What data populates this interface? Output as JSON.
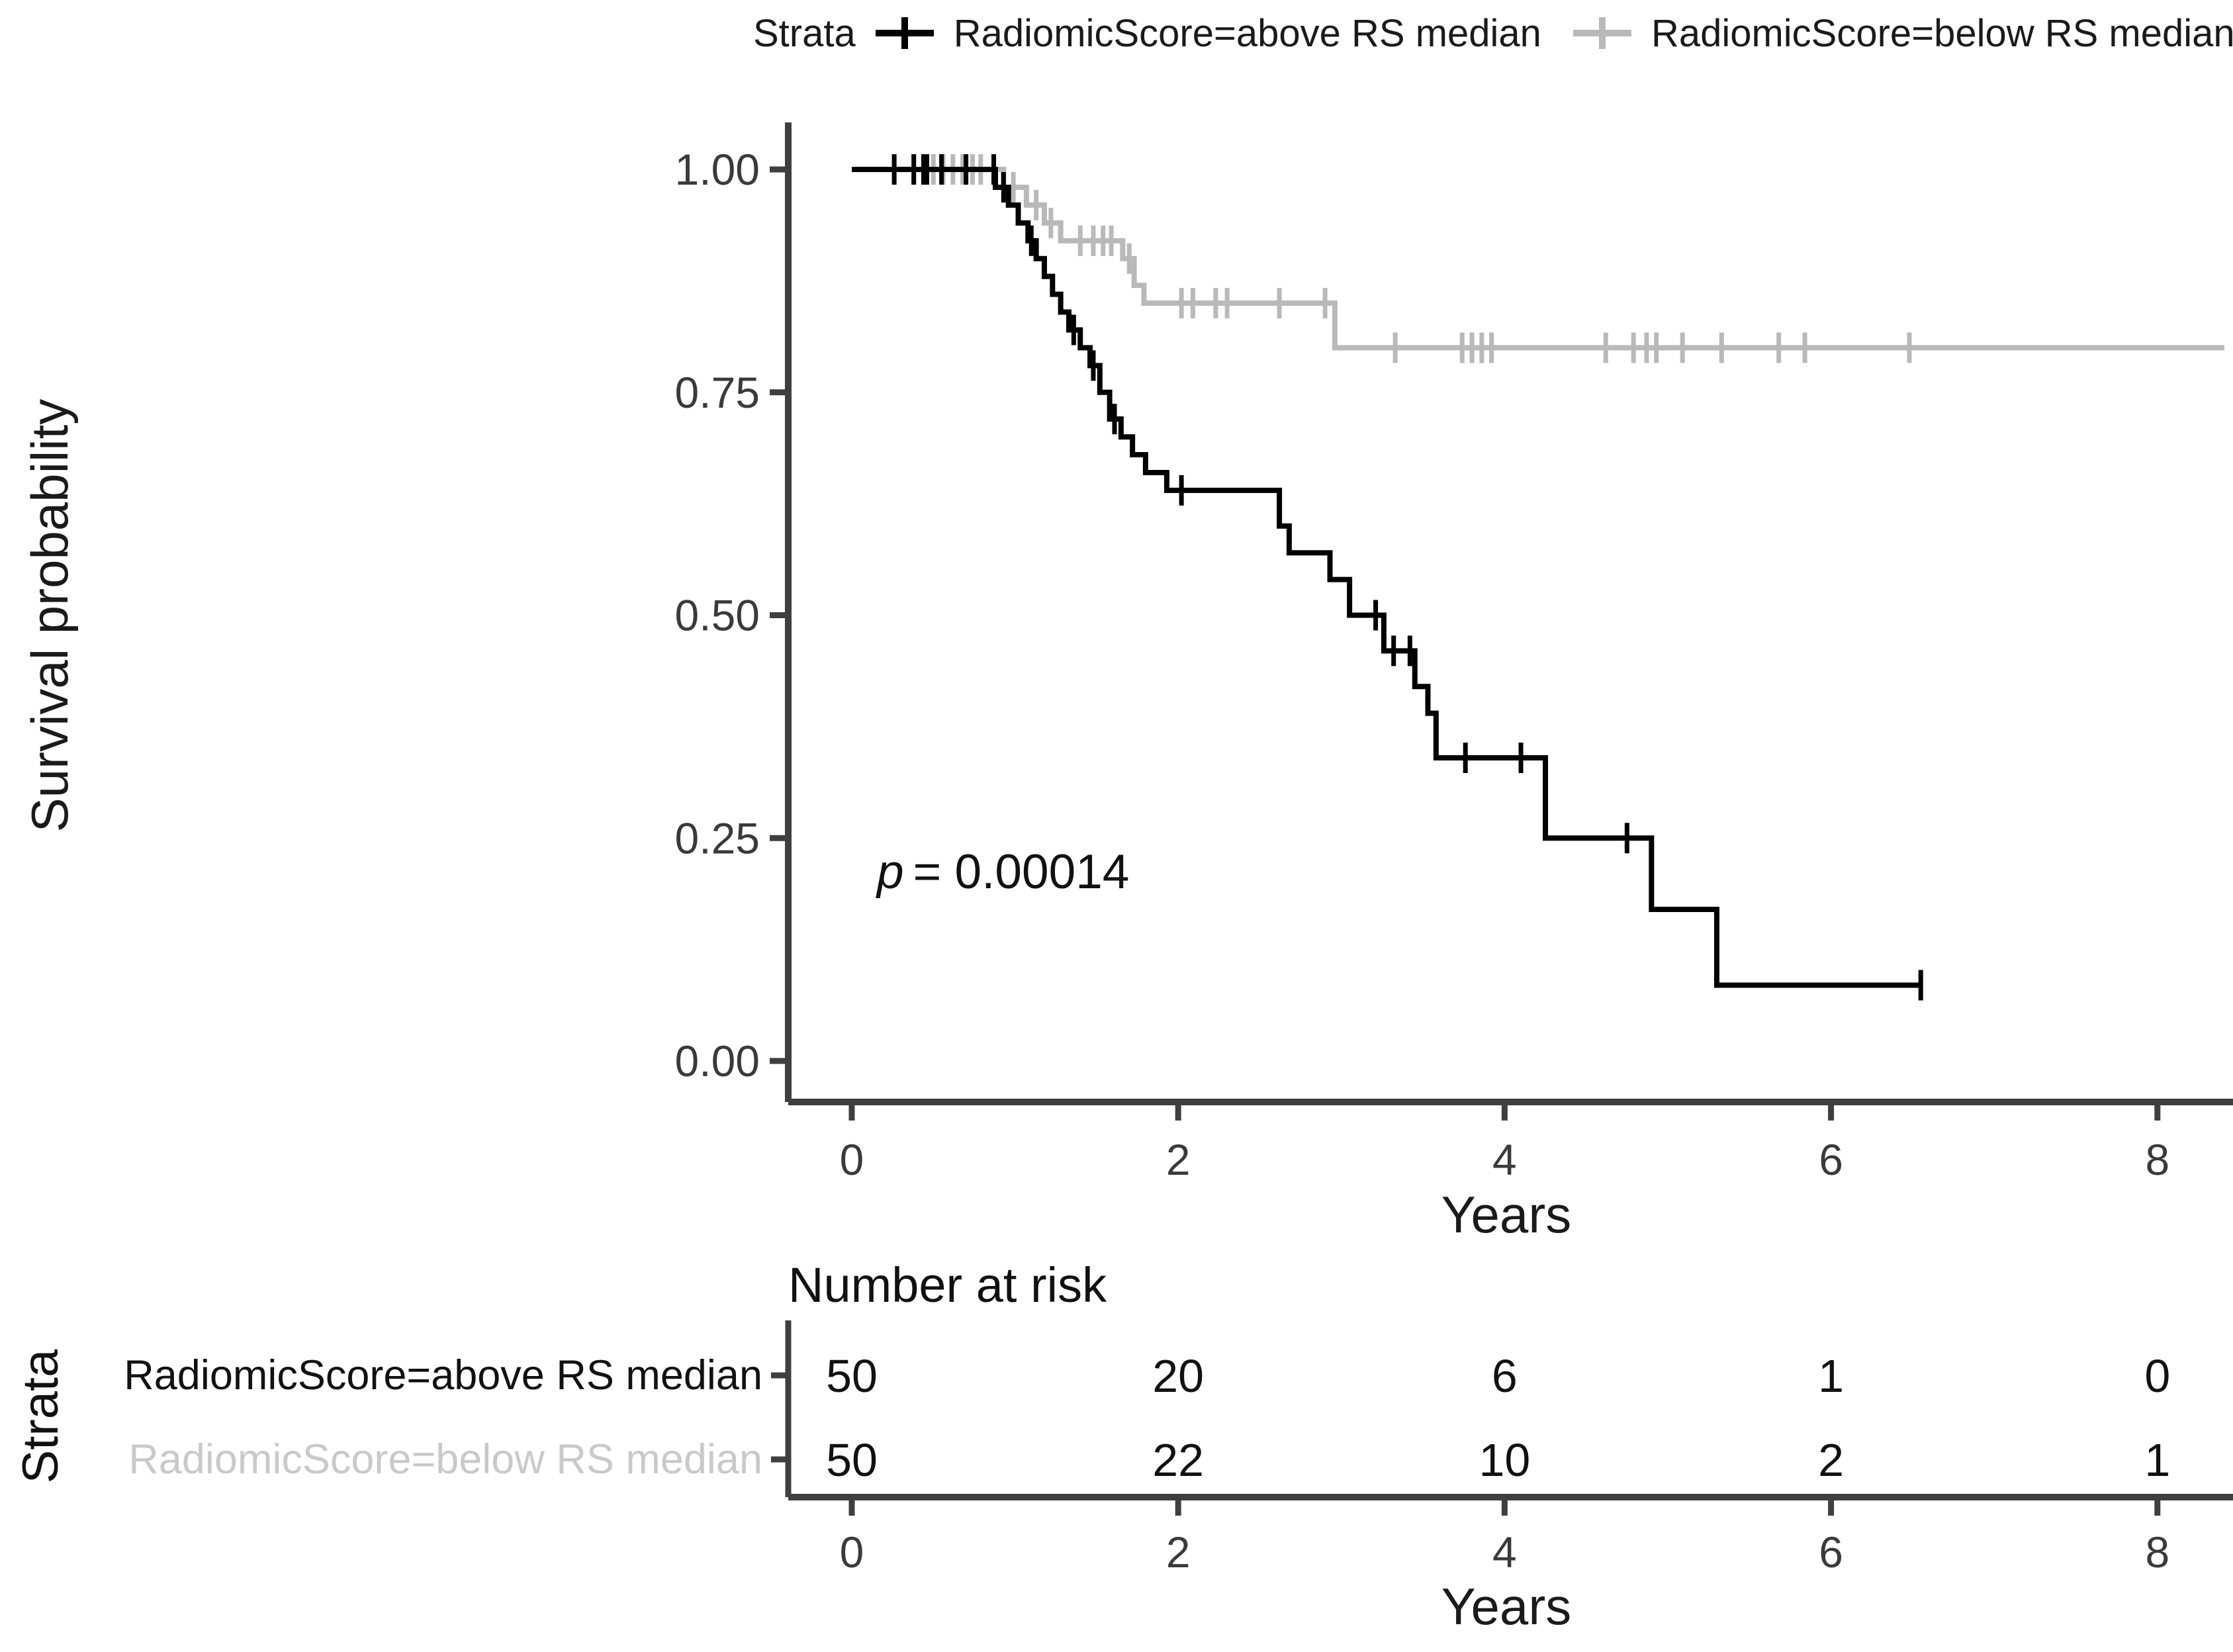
{
  "legend": {
    "title": "Strata",
    "items": [
      {
        "label": "RadiomicScore=above RS median",
        "color": "#000000"
      },
      {
        "label": "RadiomicScore=below RS median",
        "color": "#b9b9b9"
      }
    ]
  },
  "y_axis": {
    "title": "Survival probability",
    "ticks": [
      "1.00",
      "0.75",
      "0.50",
      "0.25",
      "0.00"
    ]
  },
  "x_axis": {
    "title": "Years",
    "ticks": [
      "0",
      "2",
      "4",
      "6",
      "8"
    ]
  },
  "annotation": {
    "p_var": "p",
    "p_text": "= 0.00014"
  },
  "risk_table": {
    "title": "Number at risk",
    "strata_label": "Strata",
    "x_axis_title": "Years",
    "x_ticks": [
      "0",
      "2",
      "4",
      "6",
      "8"
    ],
    "rows": [
      {
        "label": "RadiomicScore=above RS median",
        "color": "#111111",
        "counts": [
          "50",
          "20",
          "6",
          "1",
          "0"
        ]
      },
      {
        "label": "RadiomicScore=below RS median",
        "color": "#c9c9c9",
        "counts": [
          "50",
          "22",
          "10",
          "2",
          "1"
        ]
      }
    ]
  },
  "chart_data": {
    "type": "line",
    "subtype": "kaplan-meier-step",
    "title": "",
    "xlabel": "Years",
    "ylabel": "Survival probability",
    "xlim": [
      0,
      8.45
    ],
    "ylim": [
      0,
      1
    ],
    "x_tick_values": [
      0,
      2,
      4,
      6,
      8
    ],
    "y_tick_values": [
      1.0,
      0.75,
      0.5,
      0.25,
      0.0
    ],
    "grid": false,
    "legend_position": "top",
    "p_value_annotation": {
      "text": "p = 0.00014",
      "x": 0.18,
      "y": 0.2
    },
    "series": [
      {
        "name": "RadiomicScore=below RS median",
        "color": "#b9b9b9",
        "start": [
          0,
          1.0
        ],
        "steps": [
          [
            0.93,
            0.98
          ],
          [
            1.07,
            0.96
          ],
          [
            1.18,
            0.94
          ],
          [
            1.28,
            0.92
          ],
          [
            1.66,
            0.9
          ],
          [
            1.73,
            0.87
          ],
          [
            1.79,
            0.85
          ],
          [
            2.96,
            0.8
          ]
        ],
        "end_time": 8.41,
        "censor_marks": [
          [
            0.26,
            1.0
          ],
          [
            0.38,
            1.0
          ],
          [
            0.5,
            1.0
          ],
          [
            0.56,
            1.0
          ],
          [
            0.62,
            1.0
          ],
          [
            0.68,
            1.0
          ],
          [
            0.74,
            1.0
          ],
          [
            0.79,
            1.0
          ],
          [
            0.99,
            0.98
          ],
          [
            1.13,
            0.96
          ],
          [
            1.22,
            0.94
          ],
          [
            1.4,
            0.92
          ],
          [
            1.48,
            0.92
          ],
          [
            1.54,
            0.92
          ],
          [
            1.59,
            0.92
          ],
          [
            1.7,
            0.9
          ],
          [
            2.02,
            0.85
          ],
          [
            2.09,
            0.85
          ],
          [
            2.23,
            0.85
          ],
          [
            2.3,
            0.85
          ],
          [
            2.62,
            0.85
          ],
          [
            2.9,
            0.85
          ],
          [
            3.33,
            0.8
          ],
          [
            3.74,
            0.8
          ],
          [
            3.8,
            0.8
          ],
          [
            3.86,
            0.8
          ],
          [
            3.92,
            0.8
          ],
          [
            4.62,
            0.8
          ],
          [
            4.79,
            0.8
          ],
          [
            4.87,
            0.8
          ],
          [
            4.93,
            0.8
          ],
          [
            5.09,
            0.8
          ],
          [
            5.33,
            0.8
          ],
          [
            5.68,
            0.8
          ],
          [
            5.84,
            0.8
          ],
          [
            6.48,
            0.8
          ]
        ]
      },
      {
        "name": "RadiomicScore=above RS median",
        "color": "#000000",
        "start": [
          0,
          1.0
        ],
        "steps": [
          [
            0.88,
            0.98
          ],
          [
            0.96,
            0.96
          ],
          [
            1.02,
            0.94
          ],
          [
            1.08,
            0.92
          ],
          [
            1.13,
            0.9
          ],
          [
            1.18,
            0.88
          ],
          [
            1.23,
            0.86
          ],
          [
            1.28,
            0.84
          ],
          [
            1.33,
            0.82
          ],
          [
            1.4,
            0.8
          ],
          [
            1.46,
            0.78
          ],
          [
            1.52,
            0.75
          ],
          [
            1.58,
            0.72
          ],
          [
            1.65,
            0.7
          ],
          [
            1.72,
            0.68
          ],
          [
            1.8,
            0.66
          ],
          [
            1.93,
            0.64
          ],
          [
            2.62,
            0.6
          ],
          [
            2.68,
            0.57
          ],
          [
            2.93,
            0.54
          ],
          [
            3.05,
            0.5
          ],
          [
            3.26,
            0.46
          ],
          [
            3.45,
            0.42
          ],
          [
            3.53,
            0.39
          ],
          [
            3.58,
            0.34
          ],
          [
            4.25,
            0.25
          ],
          [
            4.9,
            0.17
          ],
          [
            5.3,
            0.085
          ]
        ],
        "end_time": 6.55,
        "censor_marks": [
          [
            0.26,
            1.0
          ],
          [
            0.38,
            1.0
          ],
          [
            0.44,
            1.0
          ],
          [
            0.46,
            1.0
          ],
          [
            0.55,
            1.0
          ],
          [
            0.7,
            1.0
          ],
          [
            0.87,
            1.0
          ],
          [
            0.93,
            0.98
          ],
          [
            1.1,
            0.92
          ],
          [
            1.36,
            0.82
          ],
          [
            1.48,
            0.78
          ],
          [
            1.61,
            0.72
          ],
          [
            2.02,
            0.64
          ],
          [
            3.21,
            0.5
          ],
          [
            3.32,
            0.46
          ],
          [
            3.42,
            0.46
          ],
          [
            3.76,
            0.34
          ],
          [
            4.1,
            0.34
          ],
          [
            4.75,
            0.25
          ],
          [
            6.55,
            0.085
          ]
        ]
      }
    ],
    "number_at_risk": {
      "times": [
        0,
        2,
        4,
        6,
        8
      ],
      "rows": [
        {
          "name": "RadiomicScore=above RS median",
          "counts": [
            50,
            20,
            6,
            1,
            0
          ]
        },
        {
          "name": "RadiomicScore=below RS median",
          "counts": [
            50,
            22,
            10,
            2,
            1
          ]
        }
      ]
    }
  }
}
